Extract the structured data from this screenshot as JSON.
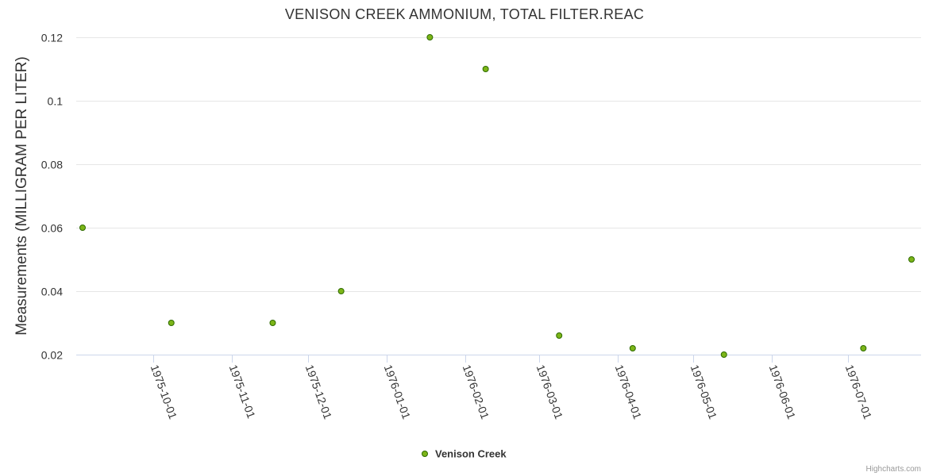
{
  "chart_data": {
    "type": "scatter",
    "title": "VENISON CREEK AMMONIUM, TOTAL FILTER.REAC",
    "xlabel": "",
    "ylabel": "Measurements (MILLIGRAM PER LITER)",
    "ylim": [
      0.02,
      0.12
    ],
    "yticks": [
      0.02,
      0.04,
      0.06,
      0.08,
      0.1,
      0.12
    ],
    "ytick_labels": [
      "0.02",
      "0.04",
      "0.06",
      "0.08",
      "0.1",
      "0.12"
    ],
    "xlim": [
      "1975-09-03",
      "1976-07-26"
    ],
    "xticks": [
      "1975-10-01",
      "1975-11-01",
      "1975-12-01",
      "1976-01-01",
      "1976-02-01",
      "1976-03-01",
      "1976-04-01",
      "1976-05-01",
      "1976-06-01",
      "1976-07-01"
    ],
    "grid": true,
    "legend_position": "bottom-center",
    "series": [
      {
        "name": "Venison Creek",
        "color": "#7cb518",
        "points": [
          {
            "x": "1975-09-03",
            "y": 0.06
          },
          {
            "x": "1975-10-08",
            "y": 0.03
          },
          {
            "x": "1975-11-17",
            "y": 0.03
          },
          {
            "x": "1975-12-14",
            "y": 0.04
          },
          {
            "x": "1976-01-18",
            "y": 0.12
          },
          {
            "x": "1976-02-09",
            "y": 0.11
          },
          {
            "x": "1976-03-09",
            "y": 0.026
          },
          {
            "x": "1976-04-07",
            "y": 0.022
          },
          {
            "x": "1976-05-13",
            "y": 0.02
          },
          {
            "x": "1976-07-07",
            "y": 0.022
          },
          {
            "x": "1976-07-26",
            "y": 0.05
          }
        ]
      }
    ]
  },
  "credits": "Highcharts.com"
}
